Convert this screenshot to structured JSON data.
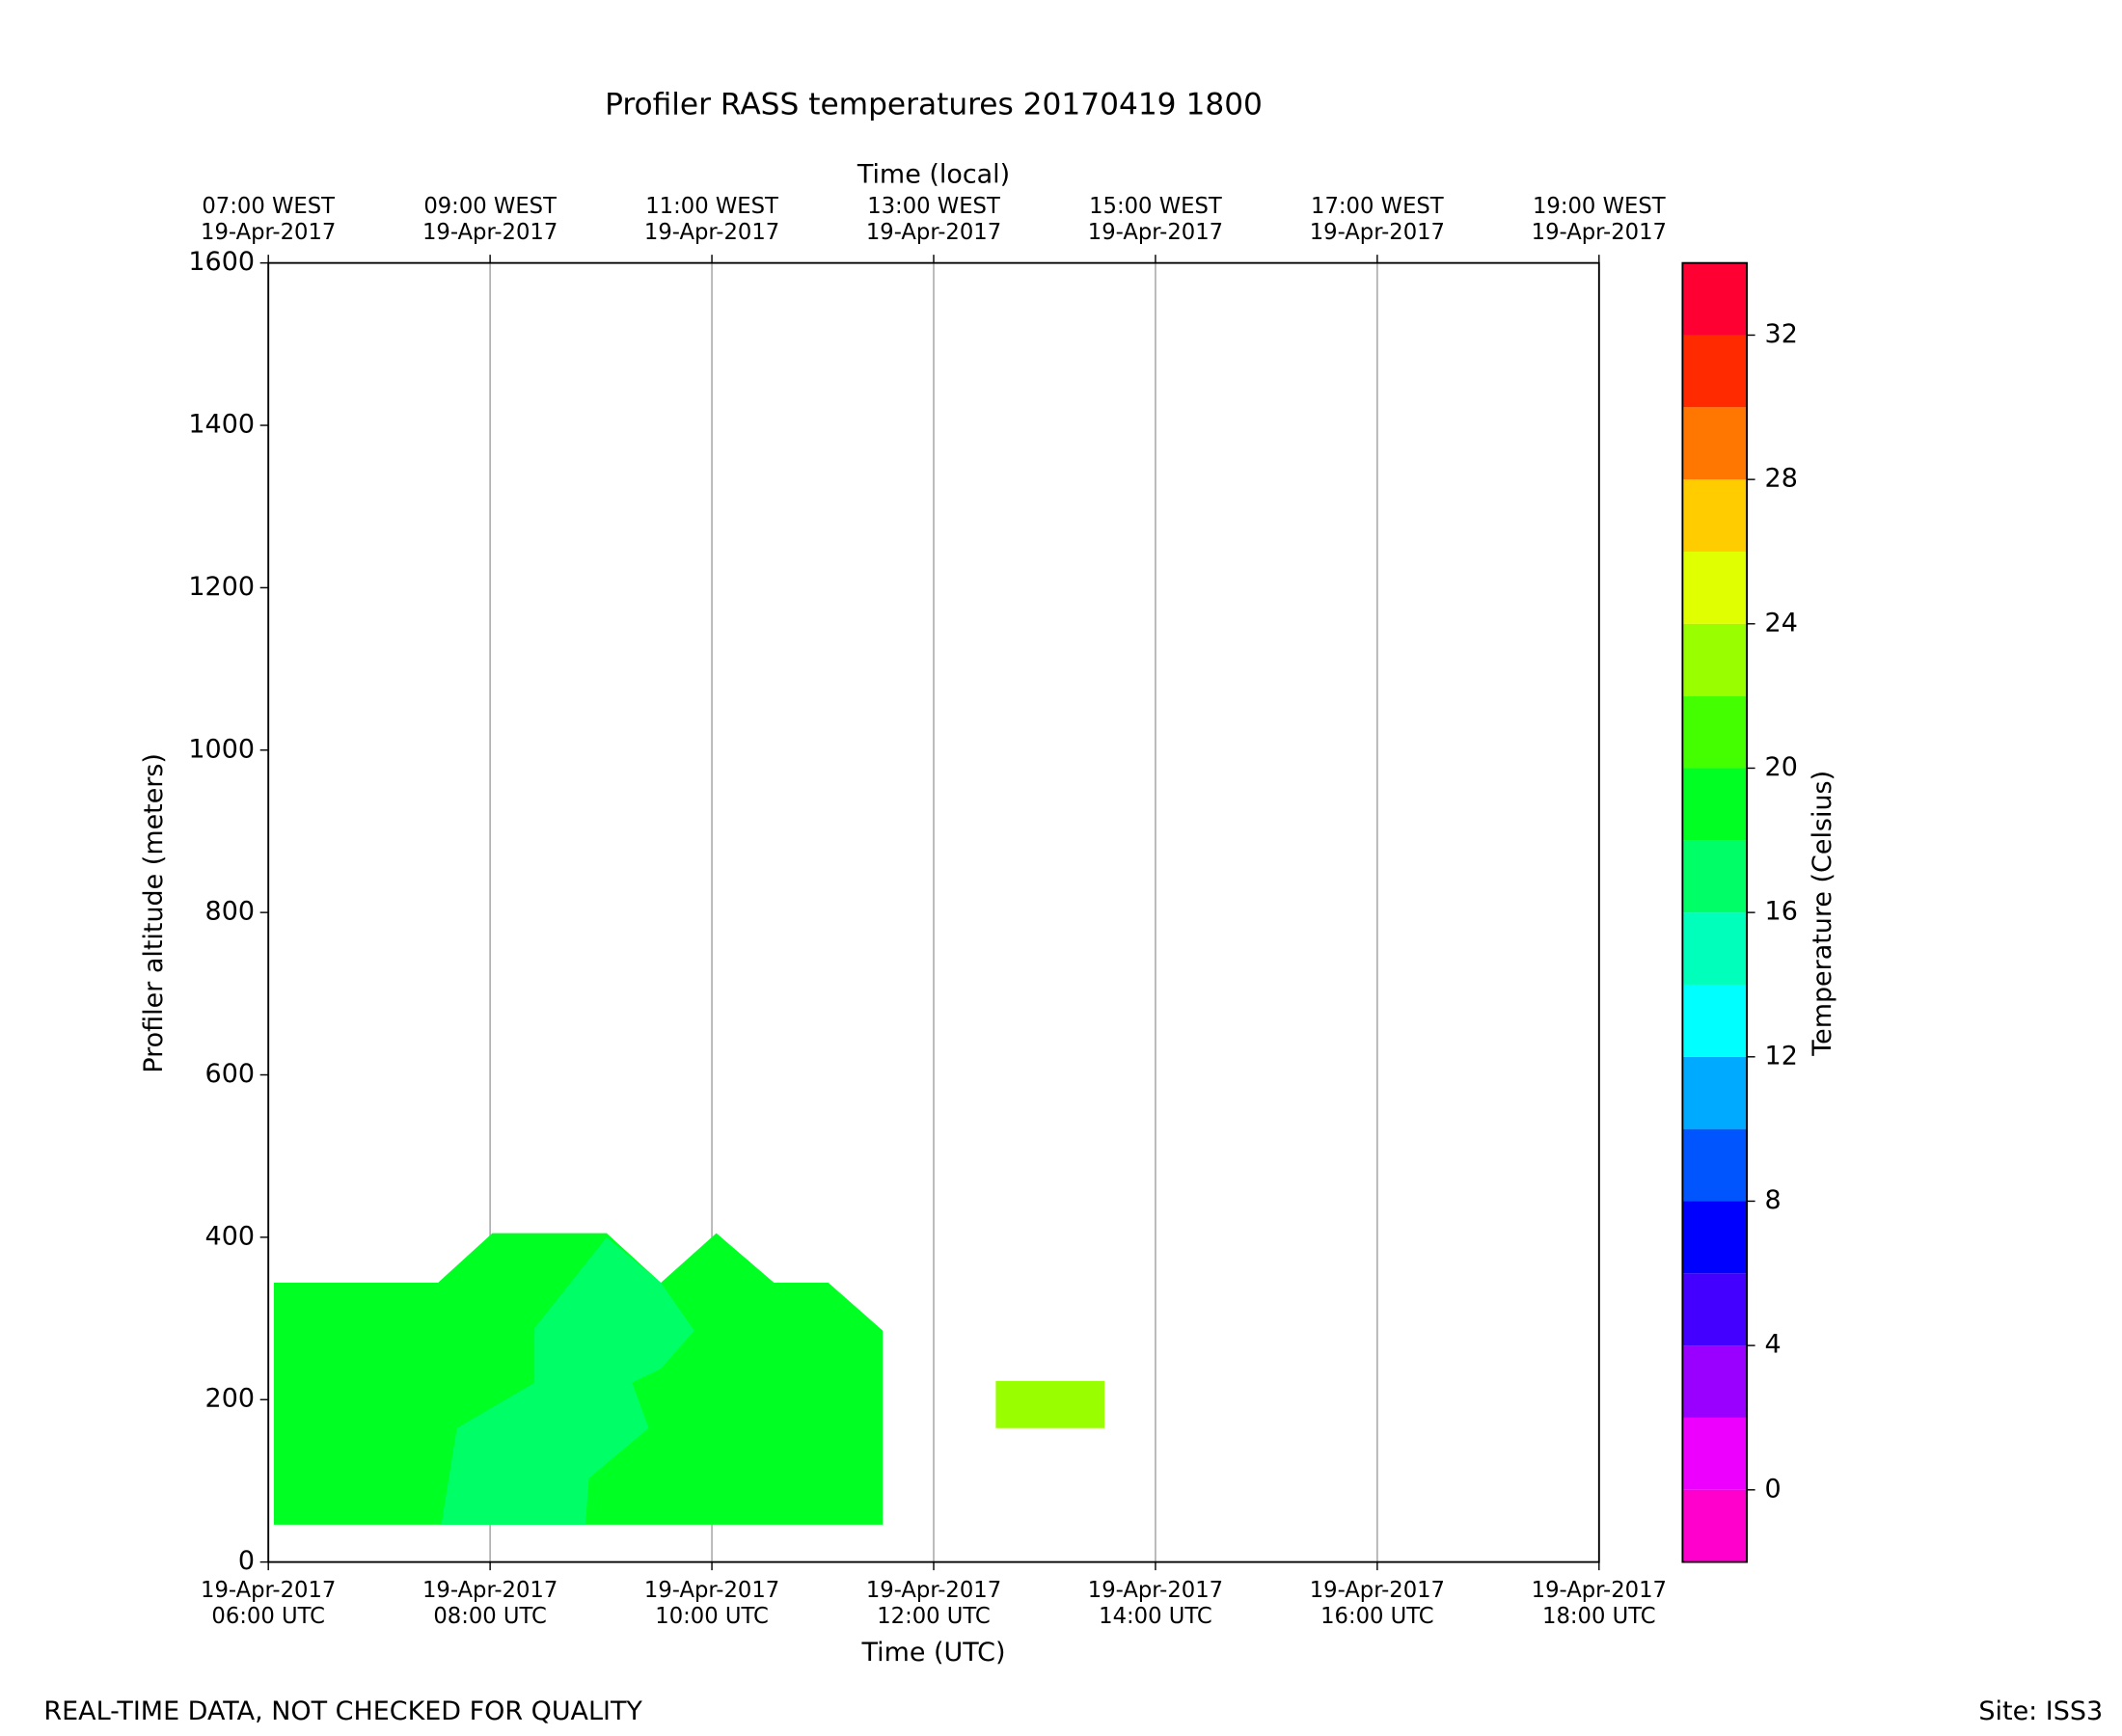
{
  "chart_data": {
    "type": "contourf",
    "title": "Profiler RASS temperatures 20170419 1800",
    "xlabel": "Time (UTC)",
    "x2label": "Time (local)",
    "ylabel": "Profiler altitude (meters)",
    "xlim": [
      6,
      18
    ],
    "ylim": [
      0,
      1600
    ],
    "grid": true,
    "xticks": [
      {
        "value": 6,
        "label": [
          "19-Apr-2017",
          "06:00 UTC"
        ]
      },
      {
        "value": 8,
        "label": [
          "19-Apr-2017",
          "08:00 UTC"
        ]
      },
      {
        "value": 10,
        "label": [
          "19-Apr-2017",
          "10:00 UTC"
        ]
      },
      {
        "value": 12,
        "label": [
          "19-Apr-2017",
          "12:00 UTC"
        ]
      },
      {
        "value": 14,
        "label": [
          "19-Apr-2017",
          "14:00 UTC"
        ]
      },
      {
        "value": 16,
        "label": [
          "19-Apr-2017",
          "16:00 UTC"
        ]
      },
      {
        "value": 18,
        "label": [
          "19-Apr-2017",
          "18:00 UTC"
        ]
      }
    ],
    "x2ticks": [
      {
        "value": 6,
        "label": [
          "07:00 WEST",
          "19-Apr-2017"
        ]
      },
      {
        "value": 8,
        "label": [
          "09:00 WEST",
          "19-Apr-2017"
        ]
      },
      {
        "value": 10,
        "label": [
          "11:00 WEST",
          "19-Apr-2017"
        ]
      },
      {
        "value": 12,
        "label": [
          "13:00 WEST",
          "19-Apr-2017"
        ]
      },
      {
        "value": 14,
        "label": [
          "15:00 WEST",
          "19-Apr-2017"
        ]
      },
      {
        "value": 16,
        "label": [
          "17:00 WEST",
          "19-Apr-2017"
        ]
      },
      {
        "value": 18,
        "label": [
          "19:00 WEST",
          "19-Apr-2017"
        ]
      }
    ],
    "yticks": [
      0,
      200,
      400,
      600,
      800,
      1000,
      1200,
      1400,
      1600
    ],
    "regions": [
      {
        "color": "#00ff22",
        "x": [
          6.05,
          7.53,
          8.02,
          9.05,
          9.54,
          10.04,
          10.56,
          11.05,
          11.54,
          11.54,
          6.05
        ],
        "y": [
          344,
          344,
          405,
          405,
          344,
          405,
          344,
          344,
          285,
          46,
          46
        ]
      },
      {
        "color": "#00ff66",
        "x": [
          7.56,
          7.7,
          8.4,
          8.4,
          9.05,
          9.54,
          9.84,
          9.54,
          9.28,
          9.43,
          8.89,
          8.86
        ],
        "y": [
          46,
          165,
          221,
          288,
          400,
          344,
          285,
          238,
          221,
          165,
          103,
          46
        ]
      },
      {
        "color": "#99ff00",
        "x": [
          12.56,
          13.54,
          13.54,
          12.56
        ],
        "y": [
          223,
          223,
          165,
          165
        ]
      }
    ],
    "colorbar": {
      "label": "Temperature (Celsius)",
      "levels": [
        -2,
        0,
        2,
        4,
        6,
        8,
        10,
        12,
        14,
        16,
        18,
        20,
        22,
        24,
        26,
        28,
        30,
        32,
        34
      ],
      "colors": [
        "#ff00cc",
        "#ee00ff",
        "#9900ff",
        "#4400ff",
        "#0000ff",
        "#0055ff",
        "#00aaff",
        "#00ffff",
        "#00ffbb",
        "#00ff66",
        "#00ff22",
        "#44ff00",
        "#99ff00",
        "#e0ff00",
        "#ffcc00",
        "#ff7700",
        "#ff2a00",
        "#ff0033"
      ],
      "ticks": [
        0,
        4,
        8,
        12,
        16,
        20,
        24,
        28,
        32
      ]
    },
    "footer_left": "REAL-TIME DATA, NOT CHECKED FOR QUALITY",
    "footer_right": "Site: ISS3"
  }
}
